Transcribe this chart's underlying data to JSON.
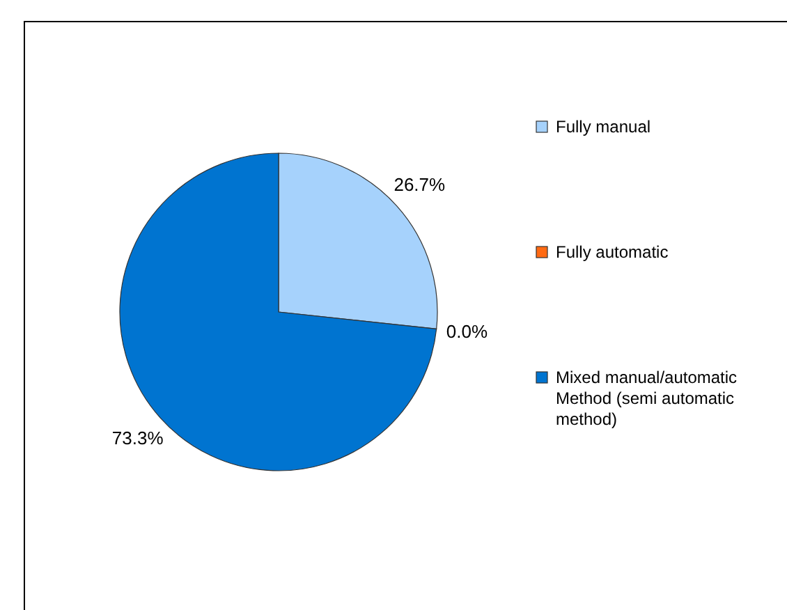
{
  "chart_data": {
    "type": "pie",
    "categories": [
      "Fully manual",
      "Fully automatic",
      "Mixed manual/automatic Method (semi automatic method)"
    ],
    "values": [
      26.7,
      0.0,
      73.3
    ],
    "colors": [
      "#a6d2fc",
      "#ff6a13",
      "#0074d0"
    ],
    "value_labels": [
      "26.7%",
      "0.0%",
      "73.3%"
    ],
    "legend": "right"
  }
}
